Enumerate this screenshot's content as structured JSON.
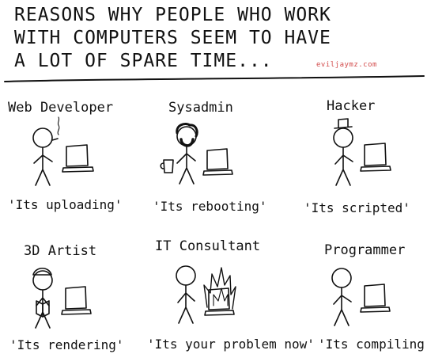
{
  "comic": {
    "title_lines": [
      "REASONS WHY PEOPLE WHO WORK",
      "WITH COMPUTERS SEEM TO HAVE",
      "A LOT OF SPARE TIME..."
    ],
    "credit": "eviljaymz.com",
    "panels": [
      {
        "role": "Web Developer",
        "quote": "'Its uploading'"
      },
      {
        "role": "Sysadmin",
        "quote": "'Its rebooting'"
      },
      {
        "role": "Hacker",
        "quote": "'Its scripted'"
      },
      {
        "role": "3D Artist",
        "quote": "'Its rendering'"
      },
      {
        "role": "IT Consultant",
        "quote": "'Its your problem now'"
      },
      {
        "role": "Programmer",
        "quote": "'Its compiling'"
      }
    ]
  }
}
